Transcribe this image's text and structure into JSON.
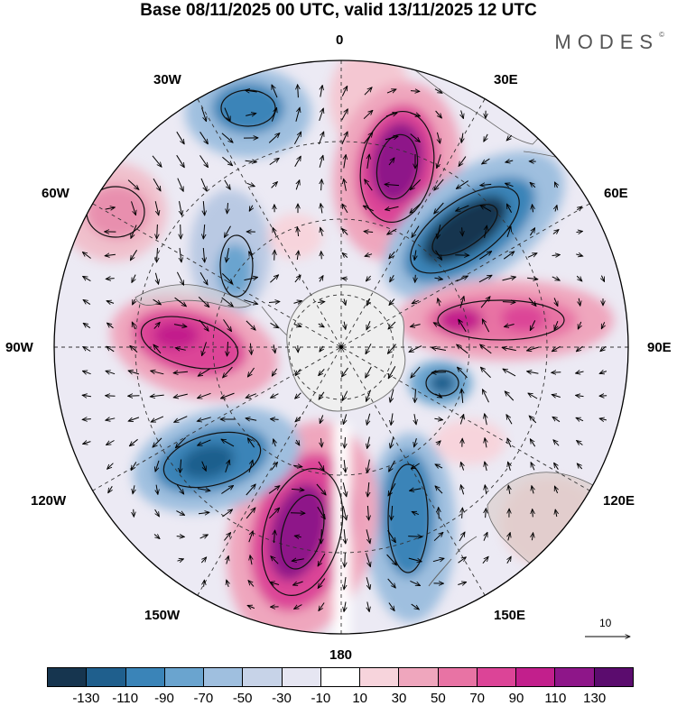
{
  "title": "Base 08/11/2025 00 UTC, valid 13/11/2025 12 UTC",
  "brand": "MODES",
  "brand_mark": "©",
  "longitude_labels": {
    "lon_0": "0",
    "lon_30e": "30E",
    "lon_60e": "60E",
    "lon_90e": "90E",
    "lon_120e": "120E",
    "lon_150e": "150E",
    "lon_180": "180",
    "lon_150w": "150W",
    "lon_120w": "120W",
    "lon_90w": "90W",
    "lon_60w": "60W",
    "lon_30w": "30W"
  },
  "reference_vector": {
    "label": "10"
  },
  "colorbar": {
    "colors": [
      "#16354f",
      "#1f5f8d",
      "#3a84b8",
      "#6aa4cf",
      "#9fbfdf",
      "#c7d3e8",
      "#e6e6f2",
      "#ffffff",
      "#f7d4dc",
      "#efa6bd",
      "#e873a4",
      "#dc4497",
      "#c21f8c",
      "#8e1689",
      "#5b0c6e"
    ],
    "tick_labels": [
      "-130",
      "-110",
      "-90",
      "-70",
      "-50",
      "-30",
      "-10",
      "10",
      "30",
      "50",
      "70",
      "90",
      "110",
      "130"
    ]
  },
  "anomaly_field": {
    "center": [
      0,
      0
    ],
    "units": "map",
    "cells": [
      {
        "sign": "positive",
        "level": 110,
        "location": "between 0 and 30E, mid-latitudes"
      },
      {
        "sign": "negative",
        "level": -130,
        "location": "near 50E"
      },
      {
        "sign": "positive",
        "level": 90,
        "location": "near 80E"
      },
      {
        "sign": "negative",
        "level": -90,
        "location": "near 100E, high latitudes"
      },
      {
        "sign": "negative",
        "level": -70,
        "location": "near 145E"
      },
      {
        "sign": "positive",
        "level": 110,
        "location": "near 165W"
      },
      {
        "sign": "negative",
        "level": -110,
        "location": "near 125W"
      },
      {
        "sign": "positive",
        "level": 90,
        "location": "near 95W"
      },
      {
        "sign": "positive",
        "level": 50,
        "location": "near 60W"
      },
      {
        "sign": "negative",
        "level": -50,
        "location": "near 45W"
      },
      {
        "sign": "negative",
        "level": -70,
        "location": "near 25W"
      },
      {
        "sign": "positive",
        "level": 30,
        "location": "near 10W"
      }
    ]
  }
}
